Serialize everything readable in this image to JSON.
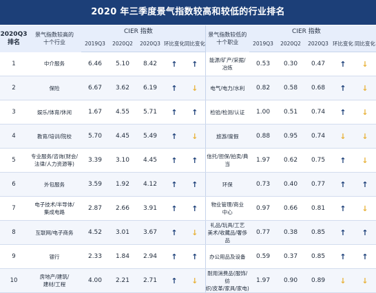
{
  "title": "2020 年三季度景气指数较高和较低的行业排名",
  "header": {
    "rank_label_1": "2020Q3",
    "rank_label_2": "排名",
    "high_industry_1": "景气指数较高的",
    "high_industry_2": "十个行业",
    "cier_high": "CIER 指数",
    "low_industry_1": "景气指数较低的",
    "low_industry_2": "十个职业",
    "cier_low": "CIER 指数",
    "columns": [
      "2019Q3",
      "2020Q2",
      "2020Q3",
      "环比变化",
      "同比变化"
    ]
  },
  "rows": [
    {
      "rank": "1",
      "high_industry": [
        "中介服务"
      ],
      "h_2019q3": "6.46",
      "h_2020q2": "5.10",
      "h_2020q3": "8.42",
      "h_qoq": "up",
      "h_yoy": "up",
      "low_industry": [
        "能源/矿产/采掘/",
        "冶炼"
      ],
      "l_2019q3": "0.53",
      "l_2020q2": "0.30",
      "l_2020q3": "0.47",
      "l_qoq": "up",
      "l_yoy": "down"
    },
    {
      "rank": "2",
      "high_industry": [
        "保险"
      ],
      "h_2019q3": "6.67",
      "h_2020q2": "3.62",
      "h_2020q3": "6.19",
      "h_qoq": "up",
      "h_yoy": "down",
      "low_industry": [
        "电气/电力/水利"
      ],
      "l_2019q3": "0.82",
      "l_2020q2": "0.58",
      "l_2020q3": "0.68",
      "l_qoq": "up",
      "l_yoy": "down"
    },
    {
      "rank": "3",
      "high_industry": [
        "娱乐/体育/休闲"
      ],
      "h_2019q3": "1.67",
      "h_2020q2": "4.55",
      "h_2020q3": "5.71",
      "h_qoq": "up",
      "h_yoy": "up",
      "low_industry": [
        "检验/检测/认证"
      ],
      "l_2019q3": "1.00",
      "l_2020q2": "0.51",
      "l_2020q3": "0.74",
      "l_qoq": "up",
      "l_yoy": "down"
    },
    {
      "rank": "4",
      "high_industry": [
        "教育/培训/院校"
      ],
      "h_2019q3": "5.70",
      "h_2020q2": "4.45",
      "h_2020q3": "5.49",
      "h_qoq": "up",
      "h_yoy": "down",
      "low_industry": [
        "旅游/度假"
      ],
      "l_2019q3": "0.88",
      "l_2020q2": "0.95",
      "l_2020q3": "0.74",
      "l_qoq": "down",
      "l_yoy": "down"
    },
    {
      "rank": "5",
      "high_industry": [
        "专业服务/咨询(财会/",
        "法律/人力资源等)"
      ],
      "h_2019q3": "3.39",
      "h_2020q2": "3.10",
      "h_2020q3": "4.45",
      "h_qoq": "up",
      "h_yoy": "up",
      "low_industry": [
        "信托/担保/拍卖/典当"
      ],
      "l_2019q3": "1.97",
      "l_2020q2": "0.62",
      "l_2020q3": "0.75",
      "l_qoq": "up",
      "l_yoy": "down"
    },
    {
      "rank": "6",
      "high_industry": [
        "外包服务"
      ],
      "h_2019q3": "3.59",
      "h_2020q2": "1.92",
      "h_2020q3": "4.12",
      "h_qoq": "up",
      "h_yoy": "up",
      "low_industry": [
        "环保"
      ],
      "l_2019q3": "0.73",
      "l_2020q2": "0.40",
      "l_2020q3": "0.77",
      "l_qoq": "up",
      "l_yoy": "up"
    },
    {
      "rank": "7",
      "high_industry": [
        "电子技术/半导体/",
        "集成电路"
      ],
      "h_2019q3": "2.87",
      "h_2020q2": "2.66",
      "h_2020q3": "3.91",
      "h_qoq": "up",
      "h_yoy": "up",
      "low_industry": [
        "物业管理/商业",
        "中心"
      ],
      "l_2019q3": "0.97",
      "l_2020q2": "0.66",
      "l_2020q3": "0.81",
      "l_qoq": "up",
      "l_yoy": "down"
    },
    {
      "rank": "8",
      "high_industry": [
        "互联网/电子商务"
      ],
      "h_2019q3": "4.52",
      "h_2020q2": "3.01",
      "h_2020q3": "3.67",
      "h_qoq": "up",
      "h_yoy": "down",
      "low_industry": [
        "礼品/玩具/工艺",
        "美术/收藏品/奢侈品"
      ],
      "l_2019q3": "0.77",
      "l_2020q2": "0.38",
      "l_2020q3": "0.85",
      "l_qoq": "up",
      "l_yoy": "up"
    },
    {
      "rank": "9",
      "high_industry": [
        "银行"
      ],
      "h_2019q3": "2.33",
      "h_2020q2": "1.84",
      "h_2020q3": "2.94",
      "h_qoq": "up",
      "h_yoy": "up",
      "low_industry": [
        "办公用品及设备"
      ],
      "l_2019q3": "0.59",
      "l_2020q2": "0.37",
      "l_2020q3": "0.85",
      "l_qoq": "up",
      "l_yoy": "up"
    },
    {
      "rank": "10",
      "high_industry": [
        "房地产/建筑/",
        "建材/工程"
      ],
      "h_2019q3": "4.00",
      "h_2020q2": "2.21",
      "h_2020q3": "2.71",
      "h_qoq": "up",
      "h_yoy": "down",
      "low_industry": [
        "耐用消费品(服饰/纺",
        "织/皮革/家具/家电)"
      ],
      "l_2019q3": "1.97",
      "l_2020q2": "0.90",
      "l_2020q3": "0.89",
      "l_qoq": "down",
      "l_yoy": "down"
    }
  ],
  "arrows": {
    "up": "↑",
    "down": "↓"
  },
  "colors": {
    "header_bg": "#1c3f78",
    "up_arrow": "#1c3f78",
    "down_arrow": "#e8b23a",
    "header_row_bg": "#e7eefb"
  }
}
